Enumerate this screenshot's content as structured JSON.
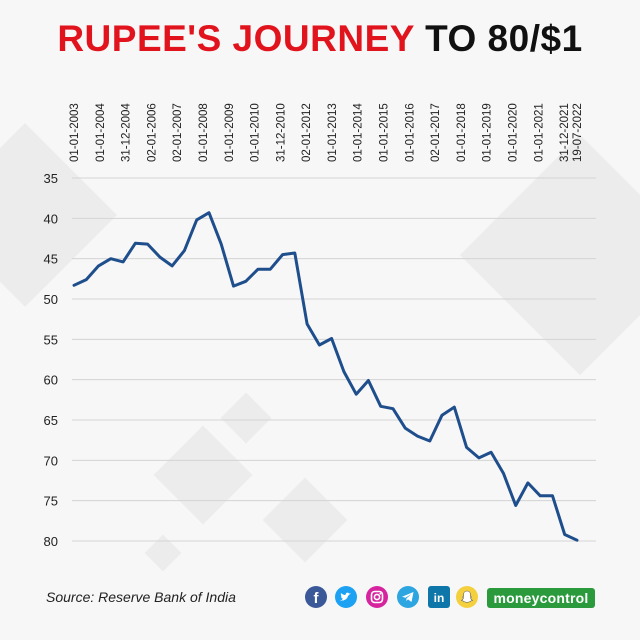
{
  "title": {
    "part1": "RUPEE'S JOURNEY",
    "part2": "TO 80/$1"
  },
  "source": "Source: Reserve Bank of India",
  "brand": "moneycontrol",
  "colors": {
    "title_red": "#e1141d",
    "line": "#1f4e8c",
    "brand_green": "#2a9a3d"
  },
  "social_icons": [
    "facebook-icon",
    "twitter-icon",
    "instagram-icon",
    "telegram-icon",
    "linkedin-icon",
    "snapchat-icon"
  ],
  "chart_data": {
    "type": "line",
    "title": "RUPEE'S JOURNEY TO 80/$1",
    "xlabel": "",
    "ylabel": "",
    "y_reversed": true,
    "ylim": [
      35,
      80
    ],
    "yticks": [
      35,
      40,
      45,
      50,
      55,
      60,
      65,
      70,
      75,
      80
    ],
    "grid": "horizontal",
    "x_tick_labels": [
      "01-01-2003",
      "01-01-2004",
      "31-12-2004",
      "02-01-2006",
      "02-01-2007",
      "01-01-2008",
      "01-01-2009",
      "01-01-2010",
      "31-12-2010",
      "02-01-2012",
      "01-01-2013",
      "01-01-2014",
      "01-01-2015",
      "01-01-2016",
      "02-01-2017",
      "01-01-2018",
      "01-01-2019",
      "01-01-2020",
      "01-01-2021",
      "31-12-2021",
      "19-07-2022"
    ],
    "x_tick_index": [
      0,
      2,
      4,
      6,
      8,
      10,
      12,
      14,
      16,
      18,
      20,
      22,
      24,
      26,
      28,
      30,
      32,
      34,
      36,
      38,
      39
    ],
    "values": [
      48.3,
      47.6,
      45.9,
      45.0,
      45.4,
      43.1,
      43.2,
      44.8,
      45.9,
      44.0,
      40.2,
      39.3,
      43.2,
      48.4,
      47.8,
      46.3,
      46.3,
      44.5,
      44.3,
      53.1,
      55.7,
      54.9,
      59.0,
      61.8,
      60.1,
      63.3,
      63.6,
      66.0,
      67.0,
      67.6,
      64.4,
      63.4,
      68.4,
      69.7,
      69.0,
      71.6,
      75.6,
      72.8,
      74.4,
      74.4,
      79.2,
      79.9
    ]
  }
}
